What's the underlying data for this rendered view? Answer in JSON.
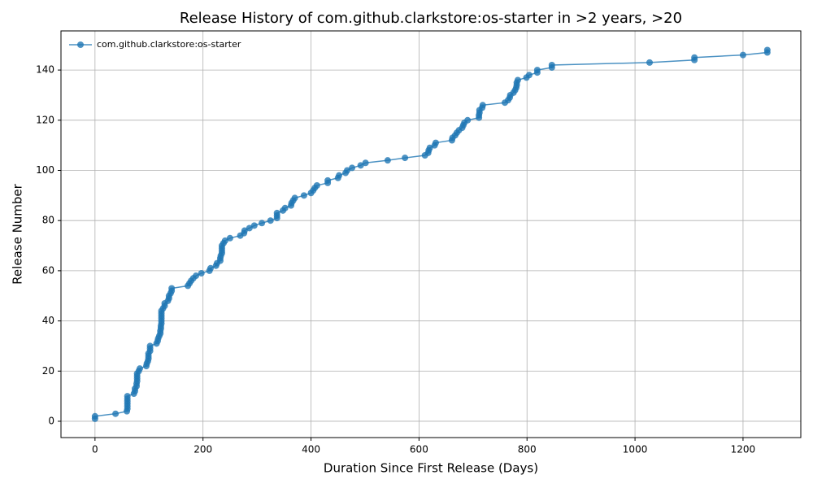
{
  "chart_data": {
    "type": "line",
    "title": "Release History of com.github.clarkstore:os-starter in >2 years, >20",
    "x_label": "Duration Since First Release (Days)",
    "y_label": "Release Number",
    "legend": "upper left",
    "grid": true,
    "xlim": [
      -63,
      1307
    ],
    "ylim": [
      -6.5,
      155.6
    ],
    "xticks": [
      0,
      200,
      400,
      600,
      800,
      1000,
      1200
    ],
    "yticks": [
      0,
      20,
      40,
      60,
      80,
      100,
      120,
      140
    ],
    "series": [
      {
        "name": "com.github.clarkstore:os-starter",
        "color": "#1f77b4",
        "x": [
          0,
          0,
          38,
          59,
          60,
          60,
          60,
          60,
          60,
          60,
          72,
          74,
          74,
          77,
          77,
          78,
          78,
          78,
          78,
          81,
          83,
          95,
          96,
          98,
          99,
          99,
          99,
          102,
          102,
          102,
          114,
          116,
          117,
          119,
          121,
          121,
          122,
          122,
          123,
          123,
          123,
          123,
          123,
          123,
          126,
          129,
          129,
          135,
          137,
          137,
          140,
          142,
          142,
          172,
          175,
          178,
          182,
          187,
          197,
          212,
          214,
          224,
          226,
          232,
          232,
          233,
          235,
          235,
          235,
          235,
          238,
          241,
          250,
          269,
          276,
          277,
          286,
          295,
          309,
          325,
          337,
          337,
          337,
          348,
          352,
          363,
          364,
          367,
          370,
          387,
          400,
          404,
          407,
          411,
          431,
          431,
          450,
          452,
          464,
          467,
          476,
          492,
          501,
          542,
          574,
          611,
          617,
          618,
          620,
          629,
          631,
          661,
          662,
          667,
          670,
          674,
          680,
          682,
          684,
          690,
          711,
          711,
          712,
          712,
          717,
          718,
          759,
          765,
          768,
          769,
          775,
          778,
          780,
          781,
          781,
          783,
          799,
          804,
          819,
          819,
          846,
          846,
          1027,
          1110,
          1110,
          1200,
          1245,
          1245
        ],
        "values": [
          1,
          2,
          3,
          4,
          5,
          6,
          7,
          8,
          9,
          10,
          11,
          12,
          13,
          14,
          15,
          16,
          17,
          18,
          19,
          20,
          21,
          22,
          23,
          24,
          25,
          26,
          27,
          28,
          29,
          30,
          31,
          32,
          33,
          34,
          35,
          36,
          37,
          38,
          39,
          40,
          41,
          42,
          43,
          44,
          45,
          46,
          47,
          48,
          49,
          50,
          51,
          52,
          53,
          54,
          55,
          56,
          57,
          58,
          59,
          60,
          61,
          62,
          63,
          64,
          65,
          66,
          67,
          68,
          69,
          70,
          71,
          72,
          73,
          74,
          75,
          76,
          77,
          78,
          79,
          80,
          81,
          82,
          83,
          84,
          85,
          86,
          87,
          88,
          89,
          90,
          91,
          92,
          93,
          94,
          95,
          96,
          97,
          98,
          99,
          100,
          101,
          102,
          103,
          104,
          105,
          106,
          107,
          108,
          109,
          110,
          111,
          112,
          113,
          114,
          115,
          116,
          117,
          118,
          119,
          120,
          121,
          122,
          123,
          124,
          125,
          126,
          127,
          128,
          129,
          130,
          131,
          132,
          133,
          134,
          135,
          136,
          137,
          138,
          139,
          140,
          141,
          142,
          143,
          144,
          145,
          146,
          147,
          148
        ]
      }
    ]
  }
}
